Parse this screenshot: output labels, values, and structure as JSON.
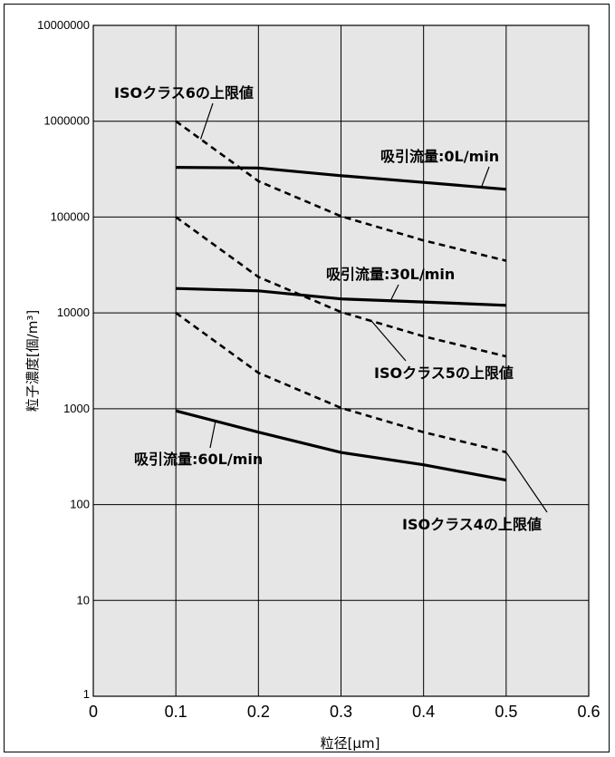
{
  "chart_data": {
    "type": "line",
    "xlabel": "粒径[μm]",
    "ylabel": "粒子濃度[個/m³]",
    "xlim": [
      0,
      0.6
    ],
    "ylim": [
      1,
      10000000
    ],
    "yscale": "log",
    "grid": true,
    "x_ticks": [
      "0",
      "0.1",
      "0.2",
      "0.3",
      "0.4",
      "0.5",
      "0.6"
    ],
    "y_ticks": [
      "1",
      "10",
      "100",
      "1000",
      "10000",
      "100000",
      "1000000",
      "10000000"
    ],
    "series": [
      {
        "name": "吸引流量:0L/min",
        "style": "solid",
        "x": [
          0.1,
          0.2,
          0.3,
          0.4,
          0.5
        ],
        "y": [
          330000,
          325000,
          270000,
          230000,
          195000
        ]
      },
      {
        "name": "吸引流量:30L/min",
        "style": "solid",
        "x": [
          0.1,
          0.2,
          0.3,
          0.4,
          0.5
        ],
        "y": [
          18000,
          17000,
          14000,
          13000,
          12000
        ]
      },
      {
        "name": "吸引流量:60L/min",
        "style": "solid",
        "x": [
          0.1,
          0.2,
          0.3,
          0.4,
          0.5
        ],
        "y": [
          950,
          570,
          350,
          260,
          180
        ]
      },
      {
        "name": "ISOクラス6の上限値",
        "style": "dashed",
        "x": [
          0.1,
          0.2,
          0.3,
          0.4,
          0.5
        ],
        "y": [
          1000000,
          237000,
          102000,
          57000,
          35000
        ]
      },
      {
        "name": "ISOクラス5の上限値",
        "style": "dashed",
        "x": [
          0.1,
          0.2,
          0.3,
          0.4,
          0.5
        ],
        "y": [
          100000,
          23700,
          10200,
          5700,
          3520
        ]
      },
      {
        "name": "ISOクラス4の上限値",
        "style": "dashed",
        "x": [
          0.1,
          0.2,
          0.3,
          0.4,
          0.5
        ],
        "y": [
          10000,
          2370,
          1020,
          570,
          352
        ]
      }
    ],
    "annotations": [
      {
        "text": "ISOクラス6の上限値",
        "series": 3
      },
      {
        "text": "吸引流量:0L/min",
        "series": 0
      },
      {
        "text": "吸引流量:30L/min",
        "series": 1
      },
      {
        "text": "ISOクラス5の上限値",
        "series": 4
      },
      {
        "text": "吸引流量:60L/min",
        "series": 2
      },
      {
        "text": "ISOクラス4の上限値",
        "series": 5
      }
    ],
    "colors": {
      "plot_background": "#e6e6e6",
      "grid": "#000000",
      "line": "#000000"
    }
  }
}
